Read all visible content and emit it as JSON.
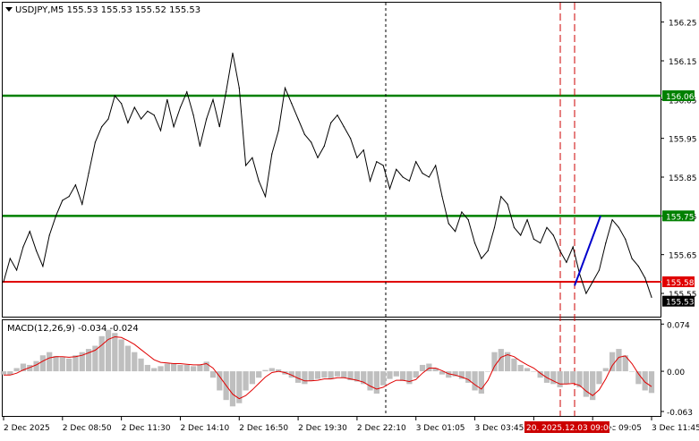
{
  "header": {
    "symbol_line": "USDJPY,M5  155.53 155.53 155.52 155.53",
    "macd_label": "MACD(12,26,9) -0.034 -0.024"
  },
  "colors": {
    "price_line": "#000000",
    "green_level": "#008000",
    "red_level": "#e00000",
    "blue_segment": "#0000cc",
    "dashed_marker": "#cc0000",
    "macd_hist": "#bfbfbf",
    "macd_signal": "#e00000",
    "current_price_bg": "#000000"
  },
  "chart_data": [
    {
      "type": "line",
      "title": "USDJPY,M5",
      "ylim": [
        155.49,
        156.3
      ],
      "y_ticks": [
        "156.25",
        "156.15",
        "156.05",
        "155.95",
        "155.85",
        "155.75",
        "155.65",
        "155.55"
      ],
      "x_ticks": [
        "2 Dec 2025",
        "2 Dec 08:50",
        "2 Dec 11:30",
        "2 Dec 14:10",
        "2 Dec 16:50",
        "2 Dec 19:30",
        "2 Dec 22:10",
        "3 Dec 01:05",
        "3 Dec 03:45",
        "3 Dec 06:25",
        "3 Dec 09:05",
        "3 Dec 11:45"
      ],
      "x_tick_highlight": "20. 2025.12.03 09:00",
      "levels": [
        {
          "value": 156.06,
          "label": "156.06",
          "color": "#008000"
        },
        {
          "value": 155.75,
          "label": "155.75",
          "color": "#008000"
        },
        {
          "value": 155.58,
          "label": "155.58",
          "color": "#e00000"
        }
      ],
      "current_price": "155.53",
      "close": [
        155.58,
        155.64,
        155.61,
        155.67,
        155.71,
        155.66,
        155.62,
        155.7,
        155.75,
        155.79,
        155.8,
        155.83,
        155.78,
        155.86,
        155.94,
        155.98,
        156.0,
        156.06,
        156.04,
        155.99,
        156.03,
        156.0,
        156.02,
        156.01,
        155.97,
        156.05,
        155.98,
        156.03,
        156.07,
        156.01,
        155.93,
        156.0,
        156.05,
        155.98,
        156.07,
        156.17,
        156.08,
        155.88,
        155.9,
        155.84,
        155.8,
        155.91,
        155.97,
        156.08,
        156.04,
        156.0,
        155.96,
        155.94,
        155.9,
        155.93,
        155.99,
        156.01,
        155.98,
        155.95,
        155.9,
        155.92,
        155.84,
        155.89,
        155.88,
        155.82,
        155.87,
        155.85,
        155.84,
        155.89,
        155.86,
        155.85,
        155.88,
        155.8,
        155.73,
        155.71,
        155.76,
        155.74,
        155.68,
        155.64,
        155.66,
        155.72,
        155.8,
        155.78,
        155.72,
        155.7,
        155.74,
        155.69,
        155.68,
        155.72,
        155.7,
        155.66,
        155.63,
        155.67,
        155.6,
        155.55,
        155.58,
        155.61,
        155.68,
        155.74,
        155.72,
        155.69,
        155.64,
        155.62,
        155.59,
        155.54
      ],
      "blue_segment": {
        "from": 155.57,
        "to": 155.75
      }
    },
    {
      "type": "bar",
      "title": "MACD(12,26,9)",
      "ylim": [
        -0.07,
        0.08
      ],
      "y_ticks": [
        "0.074",
        "0.00",
        "-0.063"
      ],
      "histogram": [
        -0.005,
        -0.006,
        0.005,
        0.012,
        0.01,
        0.016,
        0.025,
        0.03,
        0.024,
        0.022,
        0.02,
        0.025,
        0.03,
        0.035,
        0.04,
        0.055,
        0.065,
        0.06,
        0.05,
        0.04,
        0.03,
        0.02,
        0.01,
        0.005,
        0.008,
        0.012,
        0.012,
        0.01,
        0.01,
        0.008,
        0.01,
        0.015,
        -0.01,
        -0.03,
        -0.045,
        -0.055,
        -0.05,
        -0.03,
        -0.02,
        -0.01,
        0.002,
        0.005,
        0.003,
        -0.005,
        -0.01,
        -0.018,
        -0.02,
        -0.015,
        -0.012,
        -0.01,
        -0.012,
        -0.008,
        -0.01,
        -0.014,
        -0.016,
        -0.02,
        -0.03,
        -0.035,
        -0.022,
        -0.012,
        -0.008,
        -0.015,
        -0.02,
        -0.01,
        0.01,
        0.012,
        0.005,
        -0.005,
        -0.01,
        -0.008,
        -0.012,
        -0.018,
        -0.03,
        -0.035,
        0.0,
        0.03,
        0.035,
        0.03,
        0.02,
        0.01,
        0.005,
        0.0,
        -0.01,
        -0.018,
        -0.02,
        -0.025,
        -0.02,
        -0.018,
        -0.025,
        -0.04,
        -0.045,
        -0.02,
        0.005,
        0.03,
        0.035,
        0.025,
        0.0,
        -0.02,
        -0.03,
        -0.034
      ],
      "signal": [
        -0.006,
        -0.006,
        -0.003,
        0.002,
        0.006,
        0.01,
        0.016,
        0.021,
        0.023,
        0.023,
        0.022,
        0.023,
        0.025,
        0.029,
        0.033,
        0.041,
        0.05,
        0.054,
        0.053,
        0.048,
        0.042,
        0.034,
        0.026,
        0.018,
        0.014,
        0.013,
        0.012,
        0.012,
        0.011,
        0.01,
        0.01,
        0.012,
        0.005,
        -0.008,
        -0.022,
        -0.036,
        -0.043,
        -0.038,
        -0.029,
        -0.019,
        -0.009,
        -0.002,
        0.0,
        -0.002,
        -0.006,
        -0.011,
        -0.015,
        -0.015,
        -0.014,
        -0.012,
        -0.012,
        -0.01,
        -0.01,
        -0.012,
        -0.014,
        -0.017,
        -0.023,
        -0.028,
        -0.025,
        -0.019,
        -0.014,
        -0.014,
        -0.016,
        -0.013,
        -0.003,
        0.005,
        0.005,
        0.001,
        -0.004,
        -0.006,
        -0.009,
        -0.013,
        -0.021,
        -0.028,
        -0.014,
        0.008,
        0.022,
        0.026,
        0.023,
        0.016,
        0.01,
        0.005,
        -0.003,
        -0.01,
        -0.015,
        -0.02,
        -0.02,
        -0.019,
        -0.022,
        -0.031,
        -0.038,
        -0.029,
        -0.012,
        0.009,
        0.022,
        0.024,
        0.012,
        -0.004,
        -0.017,
        -0.024
      ]
    }
  ]
}
